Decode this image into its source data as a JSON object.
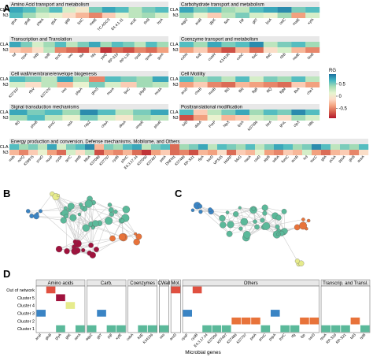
{
  "panel_labels": [
    "A",
    "B",
    "C",
    "D"
  ],
  "colors": {
    "strip_fill": "#e8e8e8",
    "panel_border": "#555555",
    "na_cell": "#f2f2f2",
    "gradient": [
      "#b2182b",
      "#d6604d",
      "#f4a582",
      "#fddbc7",
      "#e6f5d0",
      "#a8ddb5",
      "#43b7c2",
      "#1c6f9f"
    ],
    "cluster_colors": {
      "Cluster 1": "#5bb99a",
      "Cluster 2": "#e8733a",
      "Cluster 3": "#3a84c4",
      "Cluster 4": "#e6eb8c",
      "Cluster 5": "#a0123d",
      "Out of network": "#e05040"
    },
    "network_edge": "#cfcfcf"
  },
  "chart_data": [
    {
      "type": "heatmap",
      "panel": "A",
      "row_labels": [
        "CLA",
        "N3"
      ],
      "legend": {
        "title": "RG",
        "ticks": [
          0.5,
          0,
          -0.5
        ],
        "tick_labels": [
          "0.5",
          "0",
          "-0.5"
        ],
        "range": [
          -0.9,
          0.9
        ]
      },
      "facets": [
        {
          "title": "Amino Acid transport and metabolism",
          "genes": [
            "glnA",
            "glnB",
            "pheA",
            "glyA",
            "gltB",
            "lysC",
            "metE",
            "TC.AGCS",
            "E4.4.1.11",
            "aroE",
            "thrB",
            "trpA"
          ],
          "values": {
            "CLA": [
              0.7,
              0.6,
              0.4,
              0.6,
              0.2,
              0.0,
              0.5,
              0.7,
              0.6,
              0.3,
              0.5,
              0.6
            ],
            "N3": [
              0.6,
              0.4,
              0.2,
              0.1,
              -0.1,
              -0.3,
              -0.5,
              -0.2,
              0.1,
              0.3,
              0.4,
              0.2
            ]
          }
        },
        {
          "title": "Carbohydrate transport and metabolism",
          "genes": [
            "aqpZ",
            "araB",
            "glpK",
            "tktA",
            "pgi",
            "gltT",
            "lysA",
            "celC",
            "malE",
            "xylA"
          ],
          "values": {
            "CLA": [
              0.7,
              0.5,
              0.6,
              0.4,
              0.3,
              0.6,
              0.7,
              0.8,
              0.5,
              0.6
            ],
            "N3": [
              0.4,
              0.1,
              -0.2,
              0.3,
              0.5,
              0.2,
              0.1,
              0.4,
              -0.4,
              0.2
            ]
          }
        },
        {
          "title": "Transcription and Translation",
          "genes": [
            "tsf",
            "rpsA",
            "infB",
            "rplB",
            "rpoC",
            "uxs",
            "fliA",
            "hfq",
            "yaiQ",
            "RP-S19",
            "RP-L35",
            "rpsB",
            "rpmE",
            "gyrA"
          ],
          "values": {
            "CLA": [
              0.7,
              0.5,
              0.2,
              0.4,
              0.6,
              0.3,
              0.5,
              0.7,
              0.4,
              0.6,
              0.5,
              0.3,
              0.6,
              0.4
            ],
            "N3": [
              -0.2,
              -0.3,
              -0.1,
              0.3,
              -0.5,
              -0.6,
              -0.7,
              -0.3,
              -0.8,
              -0.6,
              -0.7,
              -0.5,
              -0.6,
              -0.4
            ]
          }
        },
        {
          "title": "Coenzyme transport and metabolism",
          "genes": [
            "cobN",
            "folE",
            "coaW",
            "K14136",
            "cobC",
            "folC",
            "thiC",
            "ribB",
            "nadE",
            "bioB"
          ],
          "values": {
            "CLA": [
              0.6,
              0.4,
              0.7,
              0.5,
              0.6,
              0.8,
              0.3,
              0.5,
              0.6,
              0.4
            ],
            "N3": [
              -0.4,
              -0.2,
              -0.5,
              -0.7,
              -0.3,
              -0.6,
              -0.1,
              0.2,
              -0.3,
              -0.5
            ]
          }
        },
        {
          "title": "Cell wall/membrane/envelope biogenesis",
          "genes": [
            "K07337",
            "rfbV",
            "K07270",
            "uxs",
            "pbpA",
            "glmS",
            "murA",
            "lpxC",
            "pbpB",
            "mrdA"
          ],
          "values": {
            "CLA": [
              0.6,
              0.5,
              0.3,
              0.7,
              0.4,
              -0.5,
              0.6,
              0.5,
              0.4,
              0.7
            ],
            "N3": [
              0.2,
              -0.1,
              0.3,
              -0.3,
              0.1,
              0.5,
              0.2,
              -0.2,
              0.4,
              0.3
            ]
          }
        },
        {
          "title": "Cell Motility",
          "genes": [
            "aroD",
            "cheB",
            "motB",
            "fliG",
            "fliN",
            "flgB",
            "fliQ",
            "flgM",
            "flhA",
            "cheY"
          ],
          "values": {
            "CLA": [
              0.6,
              0.4,
              0.5,
              0.3,
              0.6,
              0.2,
              0.5,
              0.4,
              0.6,
              0.3
            ],
            "N3": [
              -0.4,
              -0.2,
              -0.5,
              -0.6,
              -0.3,
              -0.4,
              -0.5,
              -0.6,
              -0.2,
              -0.4
            ]
          }
        },
        {
          "title": "Signal transduction mechanisms",
          "genes": [
            "fliS",
            "phoB",
            "pnoC",
            "relA",
            "rapZ",
            "cheA",
            "dksA",
            "ompR",
            "phoR"
          ],
          "values": {
            "CLA": [
              0.7,
              0.5,
              0.6,
              0.4,
              0.8,
              0.6,
              0.3,
              0.5,
              0.7
            ],
            "N3": [
              0.4,
              0.6,
              0.3,
              0.1,
              0.5,
              0.2,
              0.0,
              0.4,
              0.3
            ]
          }
        },
        {
          "title": "Posttranslational modification",
          "genes": [
            "lolD",
            "dsbA",
            "PreP",
            "htpX",
            "lpxA",
            "K07396",
            "htrA",
            "groL",
            "clpX",
            "hflK"
          ],
          "values": {
            "CLA": [
              0.6,
              -0.2,
              0.3,
              0.5,
              0.7,
              0.4,
              0.6,
              0.5,
              0.8,
              0.6
            ],
            "N3": [
              -0.7,
              -0.4,
              0.1,
              -0.3,
              -0.2,
              0.2,
              0.3,
              -0.1,
              0.4,
              0.2
            ]
          }
        },
        {
          "title": "Energy production and conversion, Defense mechanisms, Mobilome, and Others",
          "genes": [
            "mdh",
            "norQ",
            "K09975",
            "ycaO",
            "nuoF",
            "cydA",
            "qcrC",
            "petB",
            "fdhA",
            "K07089",
            "K07707",
            "cydB",
            "phnC",
            "E4.3.17.14",
            "K07000",
            "K07497",
            "petA",
            "DNPH1",
            "K07488",
            "RP-S21",
            "rfpA",
            "bioD",
            "VPS25",
            "HARP",
            "fdoG",
            "nasA",
            "ctaD",
            "atpB",
            "sdhA",
            "fumC",
            "acnB",
            "icd",
            "sucC",
            "gltA",
            "pckA",
            "ppsA",
            "glcB",
            "aceA"
          ],
          "values": {
            "CLA": [
              0.6,
              0.4,
              0.5,
              0.3,
              0.7,
              0.2,
              0.5,
              0.6,
              0.8,
              -0.3,
              0.5,
              0.4,
              0.6,
              0.7,
              0.3,
              0.5,
              0.6,
              -0.6,
              0.4,
              0.5,
              0.7,
              0.3,
              0.6,
              0.5,
              0.4,
              0.6,
              0.3,
              0.5,
              0.7,
              0.6,
              0.4,
              0.5,
              0.8,
              0.6,
              0.3,
              0.5,
              0.4,
              0.6
            ],
            "N3": [
              -0.3,
              -0.5,
              -0.2,
              0.1,
              -0.4,
              -0.6,
              0.2,
              -0.1,
              0.3,
              -0.7,
              -0.4,
              -0.5,
              -0.3,
              -0.6,
              -0.8,
              -0.4,
              -0.2,
              -0.6,
              -0.5,
              -0.7,
              -0.3,
              -0.4,
              -0.1,
              -0.6,
              -0.2,
              -0.3,
              0.1,
              -0.4,
              -0.5,
              -0.2,
              -0.3,
              0.2,
              -0.4,
              -0.6,
              -0.3,
              -0.2,
              -0.5,
              -0.1
            ]
          }
        }
      ]
    },
    {
      "type": "network",
      "panel": "B",
      "group_sizes": {
        "Cluster 1": 30,
        "Cluster 2": 6,
        "Cluster 3": 5,
        "Cluster 4": 3,
        "Cluster 5": 12
      }
    },
    {
      "type": "network",
      "panel": "C",
      "group_sizes": {
        "Cluster 1": 30,
        "Cluster 2": 5,
        "Cluster 3": 6,
        "Cluster 4": 3
      }
    },
    {
      "type": "tile",
      "panel": "D",
      "xlabel": "Microbial genes",
      "y_categories": [
        "Out of network",
        "Cluster 5",
        "Cluster 4",
        "Cluster 3",
        "Cluster 2",
        "Cluster 1"
      ],
      "facets": [
        {
          "title": "Amino acids",
          "genes": [
            "aroF",
            "glnB",
            "glyA",
            "gltK",
            "serA"
          ]
        },
        {
          "title": "Carb.",
          "genes": [
            "aqpZ",
            "gltT",
            "pgl",
            "xylE"
          ]
        },
        {
          "title": "Coenzymes",
          "genes": [
            "cobA",
            "folE",
            "K14136"
          ]
        },
        {
          "title": "CWall",
          "genes": [
            "uxs"
          ]
        },
        {
          "title": "Mot.",
          "genes": [
            "aroD"
          ]
        },
        {
          "title": "Others",
          "genes": [
            "cpaF",
            "cydB",
            "E4.3.17.14",
            "K07000",
            "K07497",
            "K07488",
            "K07707",
            "petA",
            "pnoC",
            "pspA",
            "pyrC",
            "rfg",
            "lpp",
            "ssrD"
          ]
        },
        {
          "title": "Transcrip. and Transl.",
          "genes": [
            "rpoA",
            "RP-S19",
            "RP-S21",
            "tsfS",
            "rplB"
          ]
        }
      ],
      "cells": [
        {
          "gene": "glnB",
          "cluster": "Out of network"
        },
        {
          "gene": "glyA",
          "cluster": "Cluster 5"
        },
        {
          "gene": "gltK",
          "cluster": "Cluster 4"
        },
        {
          "gene": "aroF",
          "cluster": "Cluster 3"
        },
        {
          "gene": "glyA",
          "cluster": "Cluster 1"
        },
        {
          "gene": "serA",
          "cluster": "Cluster 1"
        },
        {
          "gene": "gltT",
          "cluster": "Cluster 3"
        },
        {
          "gene": "aqpZ",
          "cluster": "Cluster 1"
        },
        {
          "gene": "pgl",
          "cluster": "Cluster 1"
        },
        {
          "gene": "xylE",
          "cluster": "Cluster 1"
        },
        {
          "gene": "folE",
          "cluster": "Cluster 1"
        },
        {
          "gene": "K14136",
          "cluster": "Cluster 1"
        },
        {
          "gene": "uxs",
          "cluster": "Cluster 1"
        },
        {
          "gene": "aroD",
          "cluster": "Out of network"
        },
        {
          "gene": "cydB",
          "cluster": "Out of network"
        },
        {
          "gene": "cpaF",
          "cluster": "Cluster 3"
        },
        {
          "gene": "E4.3.17.14",
          "cluster": "Cluster 1"
        },
        {
          "gene": "K07000",
          "cluster": "Cluster 1"
        },
        {
          "gene": "K07497",
          "cluster": "Cluster 1"
        },
        {
          "gene": "K07488",
          "cluster": "Cluster 2"
        },
        {
          "gene": "K07707",
          "cluster": "Cluster 2"
        },
        {
          "gene": "petA",
          "cluster": "Cluster 2"
        },
        {
          "gene": "pnoC",
          "cluster": "Cluster 1"
        },
        {
          "gene": "pspA",
          "cluster": "Cluster 3"
        },
        {
          "gene": "pyrC",
          "cluster": "Cluster 1"
        },
        {
          "gene": "rfg",
          "cluster": "Cluster 1"
        },
        {
          "gene": "lpp",
          "cluster": "Cluster 2"
        },
        {
          "gene": "ssrD",
          "cluster": "Cluster 2"
        },
        {
          "gene": "rpoA",
          "cluster": "Cluster 1"
        },
        {
          "gene": "RP-S19",
          "cluster": "Cluster 1"
        },
        {
          "gene": "RP-S21",
          "cluster": "Cluster 1"
        },
        {
          "gene": "tsfS",
          "cluster": "Cluster 2"
        },
        {
          "gene": "rplB",
          "cluster": "Cluster 1"
        }
      ]
    }
  ]
}
